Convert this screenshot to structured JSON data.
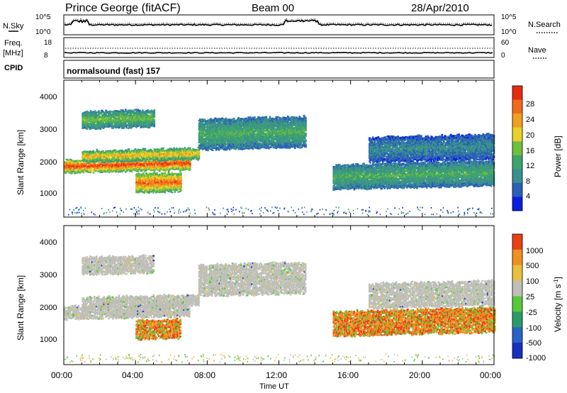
{
  "header": {
    "station": "Prince George (fitACF)",
    "beam": "Beam 00",
    "date": "28/Apr/2010"
  },
  "noise_panel": {
    "left_label": "N.Sky",
    "right_label": "N.Search",
    "left_ticks": [
      "10^5",
      "10^0"
    ],
    "right_ticks": [
      "10^5",
      "10^0"
    ]
  },
  "freq_panel": {
    "left_label": "Freq.",
    "left_unit": "[MHz]",
    "right_label": "Nave",
    "left_ticks": [
      "18",
      "8"
    ],
    "right_ticks": [
      "60",
      "0"
    ],
    "cpid_label": "CPID",
    "cpid_text": "normalsound (fast) 157"
  },
  "power_panel": {
    "ylabel": "Slant Range [km]",
    "yticks": [
      "4000",
      "3000",
      "2000",
      "1000"
    ],
    "colorbar_label": "Power [dB]",
    "colorbar_ticks": [
      "28",
      "24",
      "20",
      "16",
      "12",
      "8",
      "4"
    ],
    "colors": [
      "#0b1ee0",
      "#2a5fb8",
      "#3a8f8f",
      "#3fa36e",
      "#6fbf3f",
      "#e8d02a",
      "#f0a020",
      "#f06a1a",
      "#e82a10"
    ]
  },
  "velocity_panel": {
    "ylabel": "Slant Range [km]",
    "yticks": [
      "4000",
      "3000",
      "2000",
      "1000"
    ],
    "colorbar_label": "Velocity [m s",
    "colorbar_label_exp": "-1",
    "colorbar_label_end": "]",
    "colorbar_ticks": [
      "1000",
      "500",
      "100",
      "25",
      "-25",
      "-100",
      "-500",
      "-1000"
    ],
    "colors": [
      "#1830c0",
      "#2a62c8",
      "#2a9a6a",
      "#58c83a",
      "#bfbfb8",
      "#e8c040",
      "#f09020",
      "#e84010"
    ]
  },
  "xaxis": {
    "label": "Time UT",
    "ticks": [
      "00:00",
      "04:00",
      "08:00",
      "12:00",
      "16:00",
      "20:00",
      "00:00"
    ]
  },
  "chart_data": [
    {
      "type": "line",
      "title": "N.Sky / N.Search",
      "x": [
        "00:00",
        "04:00",
        "08:00",
        "12:00",
        "16:00",
        "20:00",
        "00:00"
      ],
      "yscale": "log",
      "ylim": [
        "10^0",
        "10^5"
      ]
    },
    {
      "type": "line",
      "title": "Freq. [MHz] / Nave",
      "x": [
        "00:00",
        "04:00",
        "08:00",
        "12:00",
        "16:00",
        "20:00",
        "00:00"
      ],
      "ylim": [
        8,
        18
      ],
      "series": [
        {
          "name": "Freq.",
          "values": [
            11,
            11,
            11,
            11,
            11,
            11,
            11
          ]
        },
        {
          "name": "Nave",
          "values": [
            24,
            24,
            24,
            24,
            24,
            24,
            24
          ]
        }
      ]
    },
    {
      "type": "heatmap",
      "title": "Power [dB]",
      "xlabel": "Time UT",
      "ylabel": "Slant Range [km]",
      "xlim": [
        "00:00",
        "00:00"
      ],
      "ylim": [
        0,
        4500
      ],
      "zlim": [
        0,
        32
      ],
      "bands": [
        {
          "t0": 0.0,
          "t1": 7.0,
          "r0": 1450,
          "r1": 1850,
          "level": 26
        },
        {
          "t0": 1.0,
          "t1": 7.5,
          "r0": 1800,
          "r1": 2150,
          "level": 20
        },
        {
          "t0": 7.5,
          "t1": 13.5,
          "r0": 2200,
          "r1": 3200,
          "level": 12
        },
        {
          "t0": 4.0,
          "t1": 6.5,
          "r0": 800,
          "r1": 1400,
          "level": 24
        },
        {
          "t0": 1.0,
          "t1": 5.0,
          "r0": 2900,
          "r1": 3450,
          "level": 14
        },
        {
          "t0": 15.0,
          "t1": 24.0,
          "r0": 900,
          "r1": 1700,
          "level": 12
        },
        {
          "t0": 17.0,
          "t1": 24.0,
          "r0": 1800,
          "r1": 2600,
          "level": 8
        }
      ]
    },
    {
      "type": "heatmap",
      "title": "Velocity [m s-1]",
      "xlabel": "Time UT",
      "ylabel": "Slant Range [km]",
      "xlim": [
        "00:00",
        "00:00"
      ],
      "ylim": [
        0,
        4500
      ],
      "zlim": [
        -1000,
        1000
      ]
    }
  ]
}
